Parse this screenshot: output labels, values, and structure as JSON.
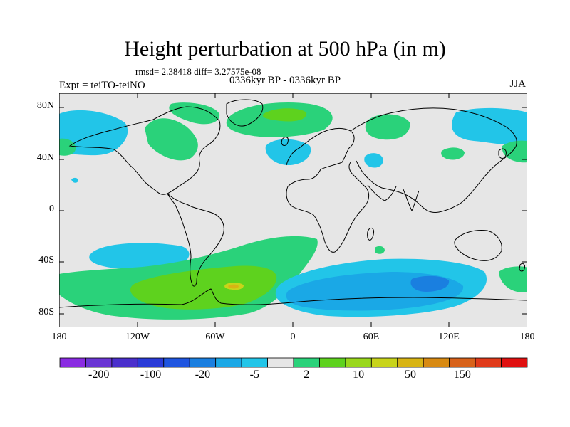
{
  "title": "Height perturbation at 500 hPa (in m)",
  "stats": "rmsd= 2.38418 diff= 3.27575e-08",
  "experiment": "Expt = teiTO-teiNO",
  "period": "0336kyr BP - 0336kyr BP",
  "season": "JJA",
  "map": {
    "projection": "cylindrical equidistant",
    "lon_range": [
      -180,
      180
    ],
    "lat_range": [
      -90,
      90
    ],
    "background_color": "#e6e6e6",
    "coastline_color": "#000000",
    "x_ticks": [
      "180",
      "120W",
      "60W",
      "0",
      "60E",
      "120E",
      "180"
    ],
    "y_ticks": [
      "80N",
      "40N",
      "0",
      "40S",
      "80S"
    ],
    "regions": [
      {
        "name": "n-pacific-east",
        "level": "-5",
        "lon": -160,
        "lat": 65
      },
      {
        "name": "n-america-west",
        "level": "2",
        "lon": -110,
        "lat": 60
      },
      {
        "name": "n-atlantic",
        "level": "-5",
        "lon": -15,
        "lat": 48
      },
      {
        "name": "n-europe",
        "level": "10",
        "lon": -5,
        "lat": 75
      },
      {
        "name": "siberia",
        "level": "2",
        "lon": 70,
        "lat": 65
      },
      {
        "name": "ne-asia",
        "level": "-5",
        "lon": 140,
        "lat": 68
      },
      {
        "name": "s-pacific",
        "level": "-5",
        "lon": -110,
        "lat": -35
      },
      {
        "name": "s-atlantic",
        "level": "10",
        "lon": -60,
        "lat": -62
      },
      {
        "name": "s-atlantic-max",
        "level": "50",
        "lon": -45,
        "lat": -59
      },
      {
        "name": "s-indian",
        "level": "-20",
        "lon": 100,
        "lat": -57
      }
    ]
  },
  "colorbar": {
    "colors": [
      "#8a2be2",
      "#6a35d4",
      "#4a2fcc",
      "#2a3bd8",
      "#1f55e0",
      "#1a7fe0",
      "#1aa8e6",
      "#22c5e8",
      "#e6e6e6",
      "#2ad27a",
      "#5ed21e",
      "#9ad81c",
      "#c8d41a",
      "#d8b414",
      "#d88a12",
      "#d8621a",
      "#e03a1a",
      "#e01010"
    ],
    "labels": [
      "-200",
      "-100",
      "-20",
      "-5",
      "2",
      "10",
      "50",
      "150"
    ]
  }
}
